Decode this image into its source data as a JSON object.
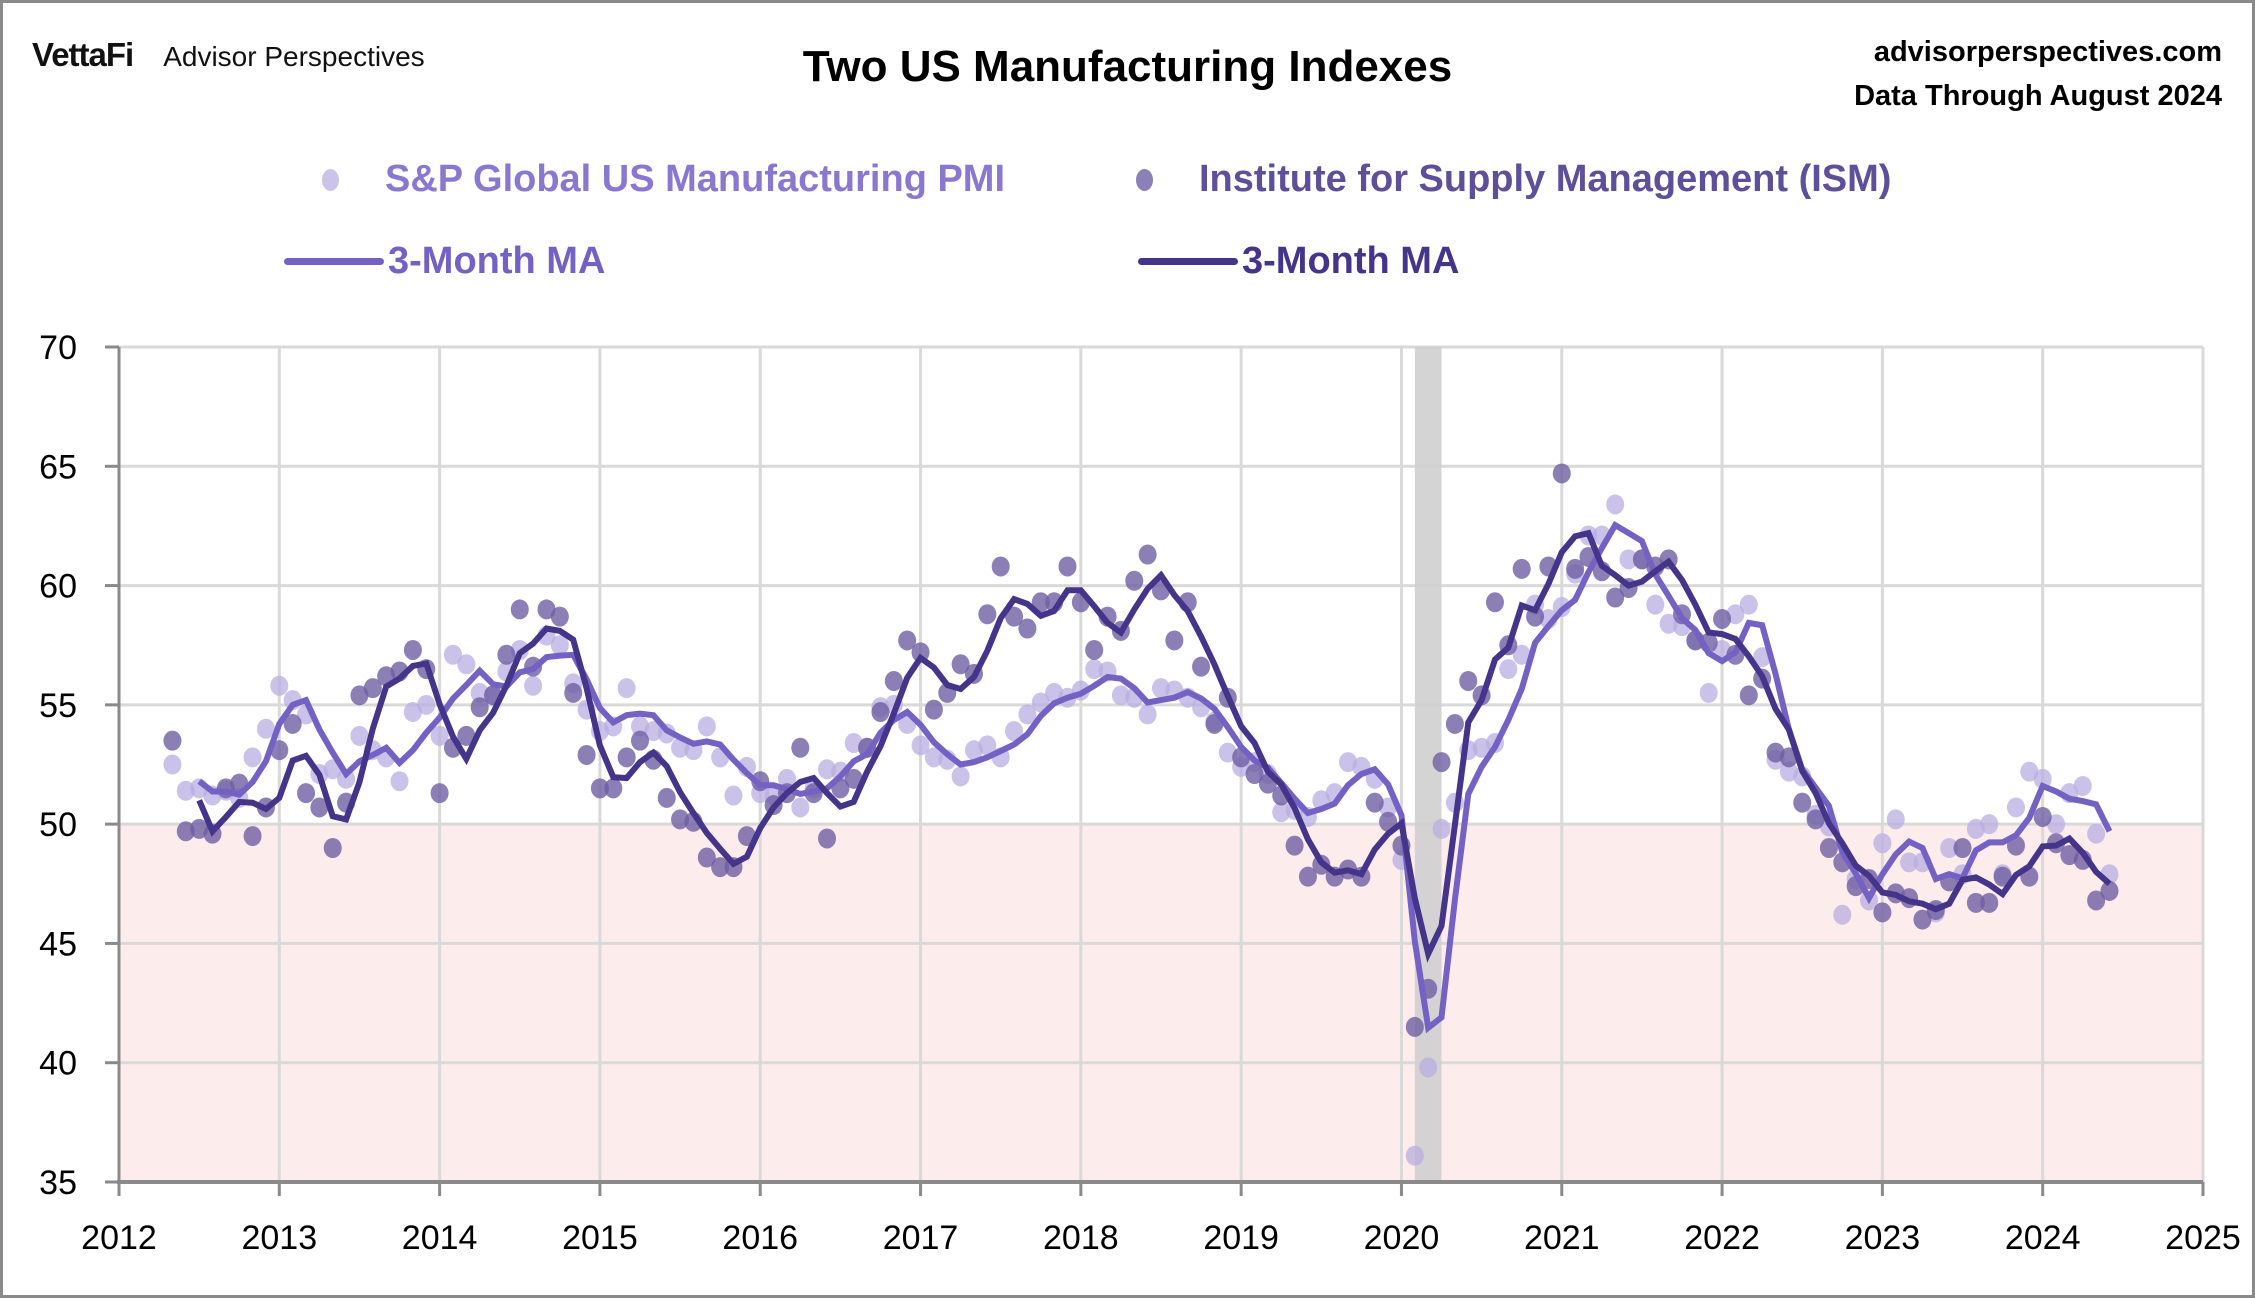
{
  "header": {
    "brand_logo": "VettaFi",
    "brand_name": "Advisor Perspectives",
    "site": "advisorperspectives.com",
    "data_through": "Data Through  August 2024"
  },
  "colors": {
    "sp_dots": "#b8aee0",
    "sp_ma": "#7461c4",
    "ism_dots": "#6e5fa3",
    "ism_ma": "#44348a",
    "contraction_fill": "#fdecec",
    "recession_band": "#cfcfcf",
    "grid": "#d9d9d9",
    "axis": "#8a8a8a"
  },
  "chart_data": {
    "type": "scatter",
    "title": "Two US Manufacturing Indexes",
    "xlabel": "",
    "ylabel": "",
    "xlim": [
      2012,
      2025
    ],
    "ylim": [
      35,
      70
    ],
    "x_ticks": [
      "2012",
      "2013",
      "2014",
      "2015",
      "2016",
      "2017",
      "2018",
      "2019",
      "2020",
      "2021",
      "2022",
      "2023",
      "2024",
      "2025"
    ],
    "y_ticks": [
      "35",
      "40",
      "45",
      "50",
      "55",
      "60",
      "65",
      "70"
    ],
    "grid": true,
    "legend_position": "top",
    "contraction_threshold": 50,
    "recession": {
      "start": "2020-02",
      "end": "2020-04"
    },
    "start_month": "2012-05",
    "series": [
      {
        "name": "S&P Global US Manufacturing PMI",
        "legend_label": "S&P Global US Manufacturing PMI",
        "ma_label": "3-Month MA",
        "start": "2012-05",
        "values": [
          52.5,
          51.4,
          51.5,
          51.2,
          51.4,
          51.1,
          52.8,
          54.0,
          55.8,
          55.2,
          54.6,
          52.1,
          52.3,
          51.9,
          53.7,
          53.1,
          52.8,
          51.8,
          54.7,
          55.0,
          53.7,
          57.1,
          56.7,
          55.5,
          55.4,
          56.4,
          57.3,
          55.8,
          57.9,
          57.5,
          55.9,
          54.8,
          53.9,
          54.1,
          55.7,
          54.1,
          53.9,
          53.8,
          53.2,
          53.1,
          54.1,
          52.8,
          51.2,
          52.4,
          51.3,
          51.2,
          51.9,
          50.7,
          51.5,
          52.3,
          52.2,
          53.4,
          53.2,
          54.9,
          55.0,
          54.2,
          53.3,
          52.8,
          52.7,
          52.0,
          53.1,
          53.3,
          52.8,
          53.9,
          54.6,
          55.1,
          55.5,
          55.3,
          55.6,
          56.5,
          56.4,
          55.4,
          55.3,
          54.6,
          55.7,
          55.6,
          55.3,
          54.9,
          54.3,
          53.0,
          52.4,
          52.6,
          52.1,
          50.5,
          50.6,
          50.3,
          51.0,
          51.3,
          52.6,
          52.4,
          51.9,
          50.7,
          48.5,
          36.1,
          39.8,
          49.8,
          50.9,
          53.1,
          53.2,
          53.4,
          56.5,
          57.1,
          59.2,
          58.6,
          59.1,
          60.5,
          62.1,
          62.1,
          63.4,
          61.1,
          61.1,
          59.2,
          58.4,
          58.3,
          57.7,
          55.5,
          57.3,
          58.8,
          59.2,
          57.0,
          52.7,
          52.2,
          52.0,
          50.4,
          49.9,
          46.2,
          47.7,
          46.8,
          49.2,
          50.2,
          48.4,
          48.4,
          46.3,
          49.0,
          47.9,
          49.8,
          50.0,
          47.9,
          50.7,
          52.2,
          51.9,
          50.0,
          51.3,
          51.6,
          49.6,
          47.9
        ]
      },
      {
        "name": "Institute for Supply Management (ISM)",
        "legend_label": "Institute for Supply Management (ISM)",
        "ma_label": "3-Month MA",
        "start": "2012-05",
        "values": [
          53.5,
          49.7,
          49.8,
          49.6,
          51.5,
          51.7,
          49.5,
          50.7,
          53.1,
          54.2,
          51.3,
          50.7,
          49.0,
          50.9,
          55.4,
          55.7,
          56.2,
          56.4,
          57.3,
          56.5,
          51.3,
          53.2,
          53.7,
          54.9,
          55.4,
          57.1,
          59.0,
          56.6,
          59.0,
          58.7,
          55.5,
          52.9,
          51.5,
          51.5,
          52.8,
          53.5,
          52.7,
          51.1,
          50.2,
          50.1,
          48.6,
          48.2,
          48.2,
          49.5,
          51.8,
          50.8,
          51.3,
          53.2,
          51.3,
          49.4,
          51.5,
          51.9,
          53.2,
          54.7,
          56.0,
          57.7,
          57.2,
          54.8,
          55.5,
          56.7,
          56.3,
          58.8,
          60.8,
          58.7,
          58.2,
          59.3,
          59.3,
          60.8,
          59.3,
          57.3,
          58.7,
          58.1,
          60.2,
          61.3,
          59.8,
          57.7,
          59.3,
          56.6,
          54.2,
          55.3,
          52.8,
          52.1,
          51.7,
          51.2,
          49.1,
          47.8,
          48.3,
          47.8,
          48.1,
          47.8,
          50.9,
          50.1,
          49.1,
          41.5,
          43.1,
          52.6,
          54.2,
          56.0,
          55.4,
          59.3,
          57.5,
          60.7,
          58.7,
          60.8,
          64.7,
          60.7,
          61.2,
          60.6,
          59.5,
          59.9,
          61.1,
          60.8,
          61.1,
          58.8,
          57.7,
          57.6,
          58.6,
          57.1,
          55.4,
          56.1,
          53.0,
          52.8,
          50.9,
          50.2,
          49.0,
          48.4,
          47.4,
          47.7,
          46.3,
          47.1,
          46.9,
          46.0,
          46.4,
          47.6,
          49.0,
          46.7,
          46.7,
          47.8,
          49.1,
          47.8,
          50.3,
          49.2,
          48.7,
          48.5,
          46.8,
          47.2
        ]
      }
    ]
  }
}
